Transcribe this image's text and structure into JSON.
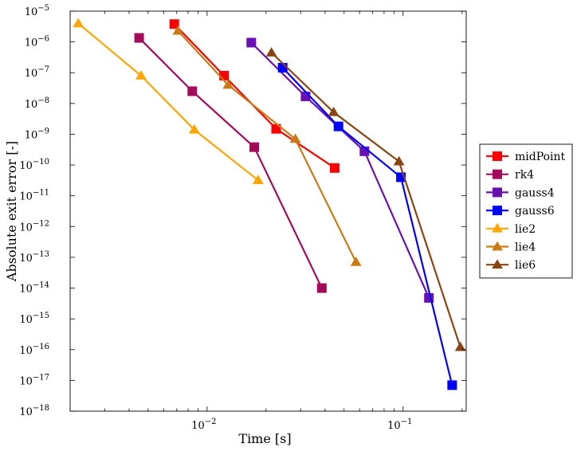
{
  "chart_data": {
    "type": "line",
    "title": "",
    "xlabel": "Time [s]",
    "ylabel": "Absolute exit error [-]",
    "xscale": "log",
    "yscale": "log",
    "xlim": [
      0.002,
      0.21
    ],
    "ylim": [
      1e-18,
      1e-05
    ],
    "x_ticks": [
      {
        "value": 0.01,
        "base": "10",
        "exp": "−2"
      },
      {
        "value": 0.1,
        "base": "10",
        "exp": "−1"
      }
    ],
    "y_ticks": [
      {
        "value": 1e-18,
        "base": "10",
        "exp": "−18"
      },
      {
        "value": 1e-17,
        "base": "10",
        "exp": "−17"
      },
      {
        "value": 1e-16,
        "base": "10",
        "exp": "−16"
      },
      {
        "value": 1e-15,
        "base": "10",
        "exp": "−15"
      },
      {
        "value": 1e-14,
        "base": "10",
        "exp": "−14"
      },
      {
        "value": 1e-13,
        "base": "10",
        "exp": "−13"
      },
      {
        "value": 1e-12,
        "base": "10",
        "exp": "−12"
      },
      {
        "value": 1e-11,
        "base": "10",
        "exp": "−11"
      },
      {
        "value": 1e-10,
        "base": "10",
        "exp": "−10"
      },
      {
        "value": 1e-09,
        "base": "10",
        "exp": "−9"
      },
      {
        "value": 1e-08,
        "base": "10",
        "exp": "−8"
      },
      {
        "value": 1e-07,
        "base": "10",
        "exp": "−7"
      },
      {
        "value": 1e-06,
        "base": "10",
        "exp": "−6"
      },
      {
        "value": 1e-05,
        "base": "10",
        "exp": "−5"
      }
    ],
    "grid": false,
    "legend_position": "right",
    "series": [
      {
        "name": "midPoint",
        "color": "#ff0000",
        "marker": "square",
        "x": [
          0.0068,
          0.0122,
          0.0225,
          0.0448
        ],
        "y": [
          3.8e-06,
          8e-08,
          1.5e-09,
          8e-11
        ]
      },
      {
        "name": "rk4",
        "color": "#a50a5a",
        "marker": "square",
        "x": [
          0.0045,
          0.0084,
          0.0174,
          0.0385
        ],
        "y": [
          1.35e-06,
          2.5e-08,
          3.8e-10,
          1e-14
        ]
      },
      {
        "name": "gauss4",
        "color": "#6a10b0",
        "marker": "square",
        "x": [
          0.0168,
          0.0318,
          0.0635,
          0.1355
        ],
        "y": [
          9.5e-07,
          1.7e-08,
          2.8e-10,
          4.8e-15
        ]
      },
      {
        "name": "gauss6",
        "color": "#0000ff",
        "marker": "square",
        "x": [
          0.0243,
          0.0468,
          0.0975,
          0.178
        ],
        "y": [
          1.45e-07,
          1.8e-09,
          4e-11,
          7e-18
        ]
      },
      {
        "name": "lie2",
        "color": "#ffa500",
        "marker": "triangle",
        "x": [
          0.0022,
          0.0046,
          0.0086,
          0.0182
        ],
        "y": [
          4e-06,
          8e-08,
          1.4e-09,
          3.2e-11
        ]
      },
      {
        "name": "lie4",
        "color": "#cc7a14",
        "marker": "triangle",
        "x": [
          0.0071,
          0.0128,
          0.0282,
          0.0575
        ],
        "y": [
          2.3e-06,
          4e-08,
          7e-10,
          7e-14
        ]
      },
      {
        "name": "lie6",
        "color": "#8b4513",
        "marker": "triangle",
        "x": [
          0.0213,
          0.0442,
          0.0953,
          0.196
        ],
        "y": [
          4.5e-07,
          5.2e-09,
          1.3e-10,
          1.2e-16
        ]
      }
    ]
  }
}
